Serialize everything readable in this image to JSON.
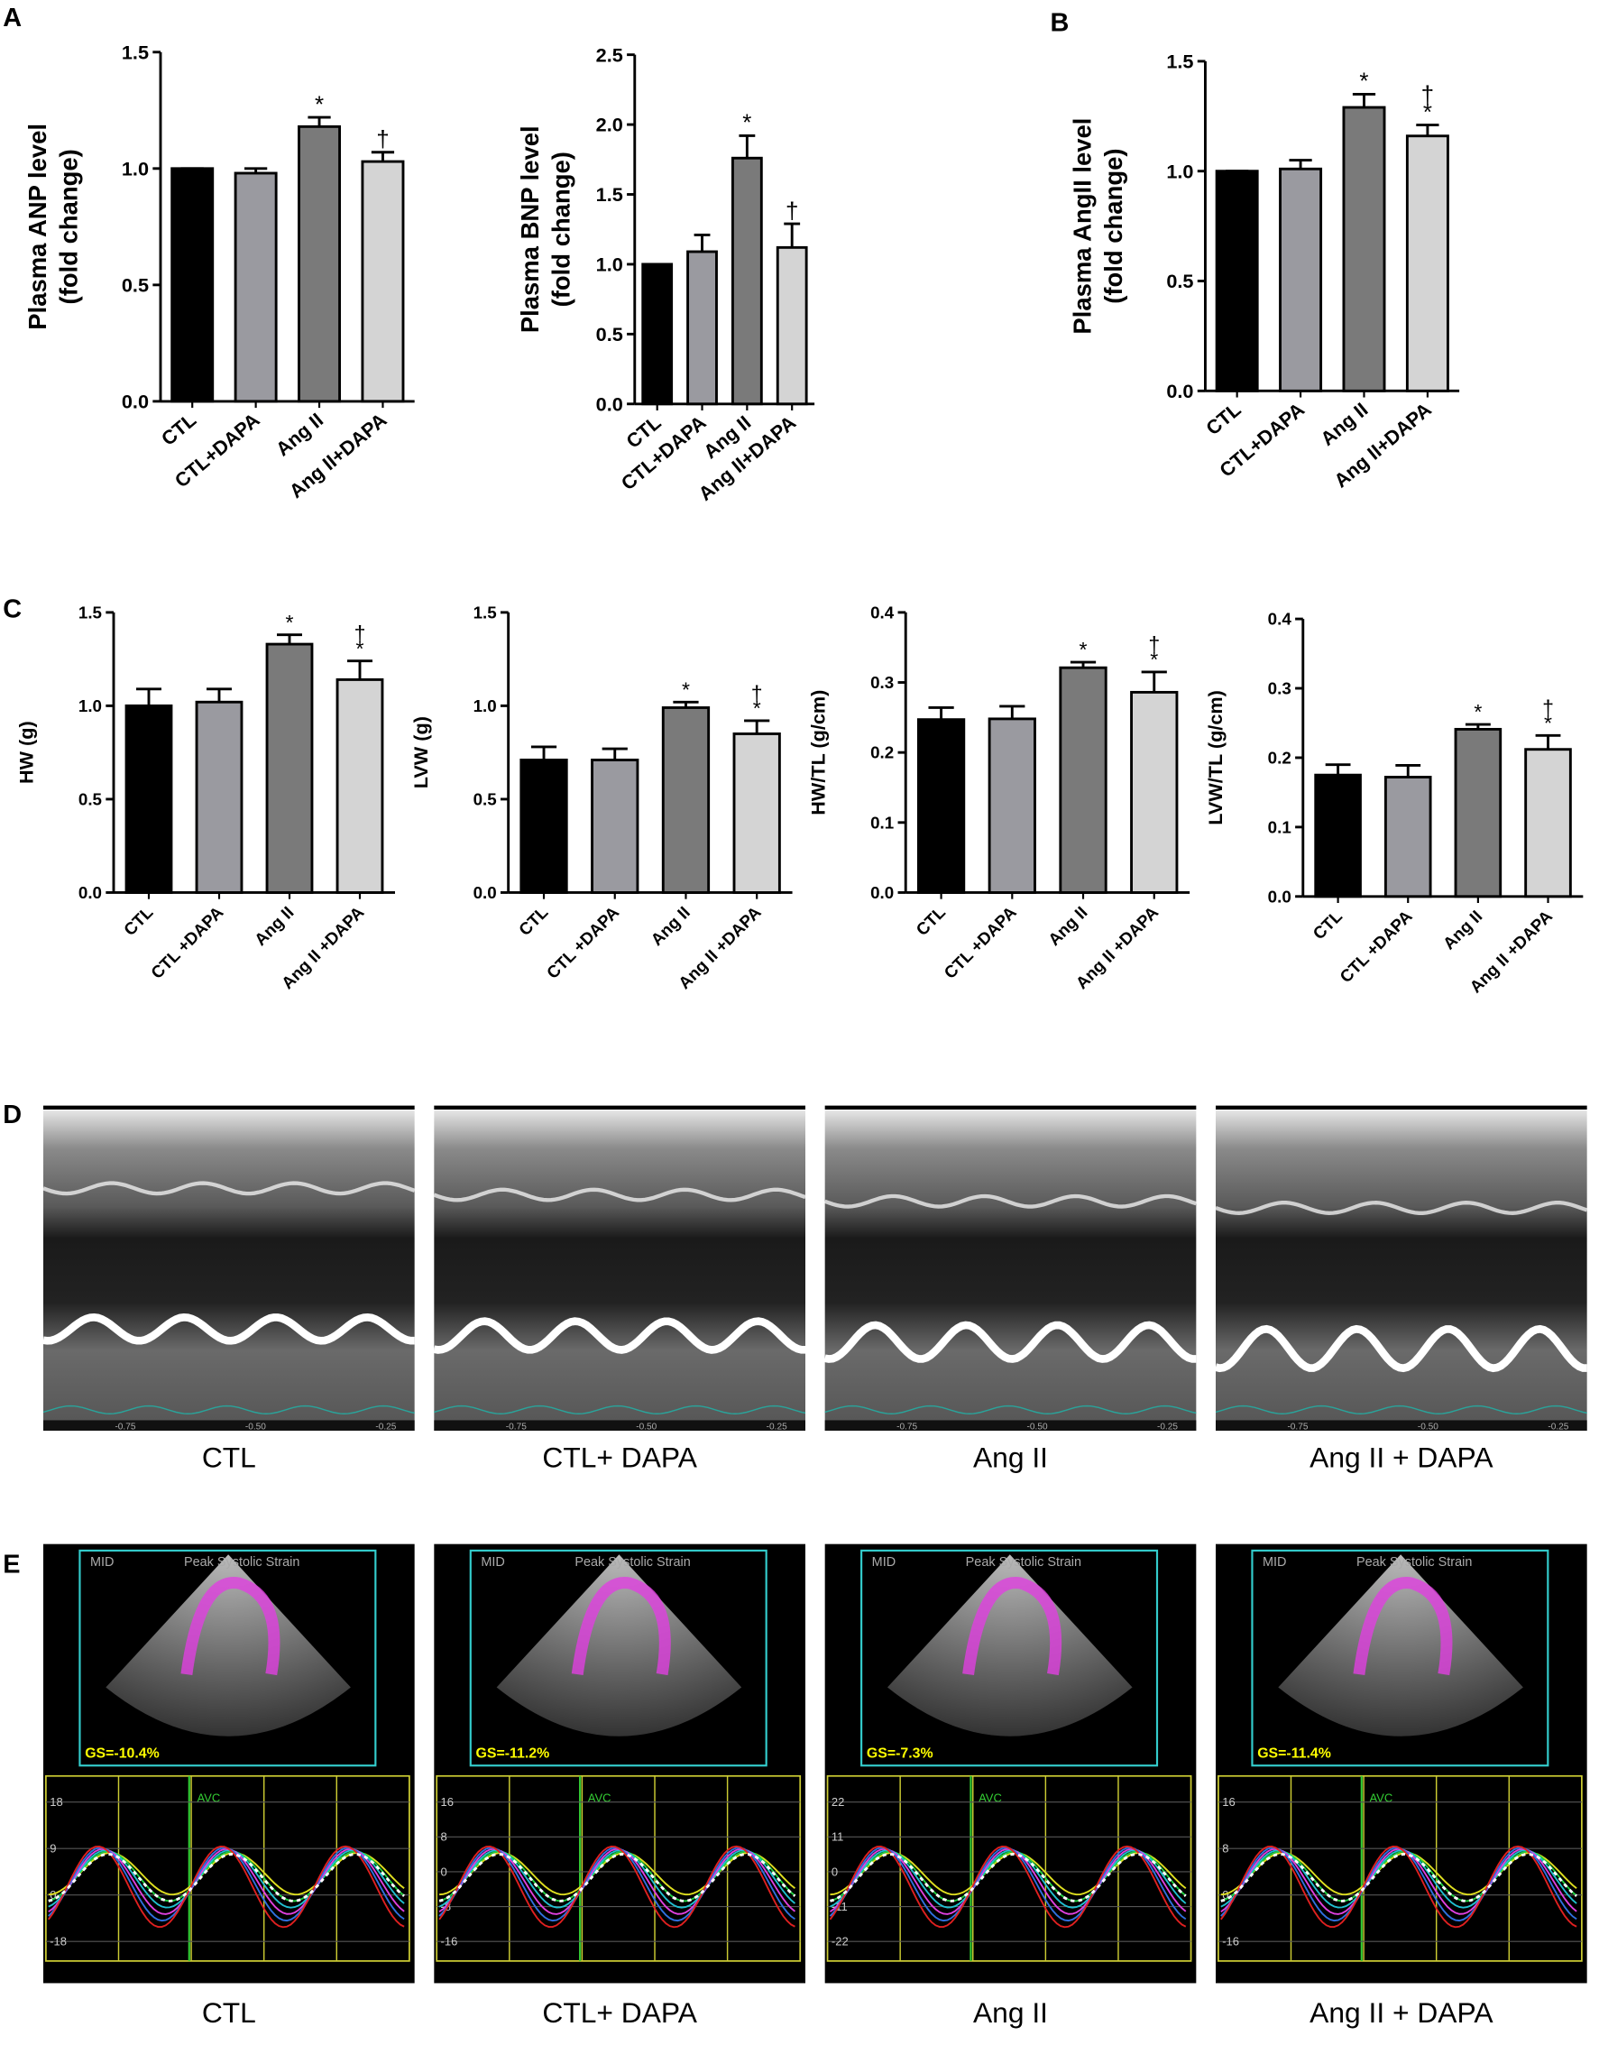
{
  "panel_labels": [
    "A",
    "B",
    "C",
    "D",
    "E"
  ],
  "chart_data": [
    {
      "type": "bar",
      "ylabel": [
        "Plasma ANP level",
        "(fold change)"
      ],
      "categories": [
        "CTL",
        "CTL+DAPA",
        "Ang II",
        "Ang II+DAPA"
      ],
      "values": [
        1.0,
        0.98,
        1.18,
        1.03
      ],
      "errors": [
        0,
        0.02,
        0.04,
        0.04
      ],
      "markers": [
        [],
        [],
        [
          "*"
        ],
        [
          "†"
        ]
      ],
      "colors": [
        "#000000",
        "#9a9aa0",
        "#7a7a7a",
        "#d4d4d4"
      ],
      "ylim": [
        0,
        1.5
      ],
      "yticks": [
        {
          "value": 0,
          "label": "0.0"
        },
        0.5,
        {
          "value": 1,
          "label": "1.0"
        },
        1.5
      ]
    },
    {
      "type": "bar",
      "ylabel": [
        "Plasma BNP level",
        "(fold change)"
      ],
      "categories": [
        "CTL",
        "CTL+DAPA",
        "Ang II",
        "Ang II+DAPA"
      ],
      "values": [
        1.0,
        1.09,
        1.76,
        1.12
      ],
      "errors": [
        0,
        0.12,
        0.16,
        0.17
      ],
      "markers": [
        [],
        [],
        [
          "*"
        ],
        [
          "†"
        ]
      ],
      "colors": [
        "#000000",
        "#9a9aa0",
        "#7a7a7a",
        "#d4d4d4"
      ],
      "ylim": [
        0,
        2.5
      ],
      "yticks": [
        {
          "value": 0,
          "label": "0.0"
        },
        0.5,
        {
          "value": 1,
          "label": "1.0"
        },
        1.5,
        {
          "value": 2,
          "label": "2.0"
        },
        2.5
      ]
    },
    {
      "type": "bar",
      "ylabel": [
        "Plasma AngII level",
        "(fold change)"
      ],
      "categories": [
        "CTL",
        "CTL+DAPA",
        "Ang II",
        "Ang II+DAPA"
      ],
      "values": [
        1.0,
        1.01,
        1.29,
        1.16
      ],
      "errors": [
        0,
        0.04,
        0.06,
        0.05
      ],
      "markers": [
        [],
        [],
        [
          "*"
        ],
        [
          "†",
          "*"
        ]
      ],
      "colors": [
        "#000000",
        "#9a9aa0",
        "#7a7a7a",
        "#d4d4d4"
      ],
      "ylim": [
        0,
        1.5
      ],
      "yticks": [
        {
          "value": 0,
          "label": "0.0"
        },
        0.5,
        {
          "value": 1,
          "label": "1.0"
        },
        1.5
      ]
    },
    {
      "type": "bar",
      "ylabel": [
        "HW (g)"
      ],
      "categories": [
        "CTL",
        "CTL +DAPA",
        "Ang II",
        "Ang II +DAPA"
      ],
      "values": [
        1.0,
        1.02,
        1.33,
        1.14
      ],
      "errors": [
        0.09,
        0.07,
        0.05,
        0.1
      ],
      "markers": [
        [],
        [],
        [
          "*"
        ],
        [
          "†",
          "*"
        ]
      ],
      "colors": [
        "#000000",
        "#9a9aa0",
        "#7a7a7a",
        "#d4d4d4"
      ],
      "ylim": [
        0,
        1.5
      ],
      "yticks": [
        {
          "value": 0,
          "label": "0.0"
        },
        0.5,
        {
          "value": 1,
          "label": "1.0"
        },
        1.5
      ]
    },
    {
      "type": "bar",
      "ylabel": [
        "LVW (g)"
      ],
      "categories": [
        "CTL",
        "CTL +DAPA",
        "Ang II",
        "Ang II +DAPA"
      ],
      "values": [
        0.71,
        0.71,
        0.99,
        0.85
      ],
      "errors": [
        0.07,
        0.06,
        0.03,
        0.07
      ],
      "markers": [
        [],
        [],
        [
          "*"
        ],
        [
          "†",
          "*"
        ]
      ],
      "colors": [
        "#000000",
        "#9a9aa0",
        "#7a7a7a",
        "#d4d4d4"
      ],
      "ylim": [
        0,
        1.5
      ],
      "yticks": [
        {
          "value": 0,
          "label": "0.0"
        },
        0.5,
        {
          "value": 1,
          "label": "1.0"
        },
        1.5
      ]
    },
    {
      "type": "bar",
      "ylabel": [
        "HW/TL (g/cm)"
      ],
      "categories": [
        "CTL",
        "CTL +DAPA",
        "Ang II",
        "Ang II +DAPA"
      ],
      "values": [
        0.247,
        0.248,
        0.321,
        0.286
      ],
      "errors": [
        0.017,
        0.018,
        0.008,
        0.029
      ],
      "markers": [
        [],
        [],
        [
          "*"
        ],
        [
          "†",
          "*"
        ]
      ],
      "colors": [
        "#000000",
        "#9a9aa0",
        "#7a7a7a",
        "#d4d4d4"
      ],
      "ylim": [
        0,
        0.4
      ],
      "yticks": [
        {
          "value": 0,
          "label": "0.0"
        },
        0.1,
        0.2,
        0.3,
        0.4
      ]
    },
    {
      "type": "bar",
      "ylabel": [
        "LVW/TL (g/cm)"
      ],
      "categories": [
        "CTL",
        "CTL +DAPA",
        "Ang II",
        "Ang II +DAPA"
      ],
      "values": [
        0.175,
        0.172,
        0.241,
        0.212
      ],
      "errors": [
        0.015,
        0.017,
        0.007,
        0.02
      ],
      "markers": [
        [],
        [],
        [
          "*"
        ],
        [
          "†",
          "*"
        ]
      ],
      "colors": [
        "#000000",
        "#9a9aa0",
        "#7a7a7a",
        "#d4d4d4"
      ],
      "ylim": [
        0,
        0.4
      ],
      "yticks": [
        {
          "value": 0,
          "label": "0.0"
        },
        0.1,
        0.2,
        0.3,
        0.4
      ]
    }
  ],
  "mmode": {
    "labels": [
      "CTL",
      "CTL+ DAPA",
      "Ang II",
      "Ang II + DAPA"
    ],
    "time_labels": [
      "-0.75",
      "-0.50",
      "-0.25"
    ]
  },
  "strain": {
    "labels": [
      "CTL",
      "CTL+ DAPA",
      "Ang II",
      "Ang II + DAPA"
    ],
    "view": "MID",
    "mode": "Peak Systolic Strain",
    "event": "AVC",
    "gs": [
      "GS=-10.4%",
      "GS=-11.2%",
      "GS=-7.3%",
      "GS=-11.4%"
    ],
    "axis_labels": [
      [
        "18",
        "9",
        "0",
        "-18"
      ],
      [
        "16",
        "8",
        "0",
        "-8",
        "-16"
      ],
      [
        "22",
        "11",
        "0",
        "-11",
        "-22"
      ],
      [
        "16",
        "8",
        "0",
        "-16"
      ]
    ]
  }
}
